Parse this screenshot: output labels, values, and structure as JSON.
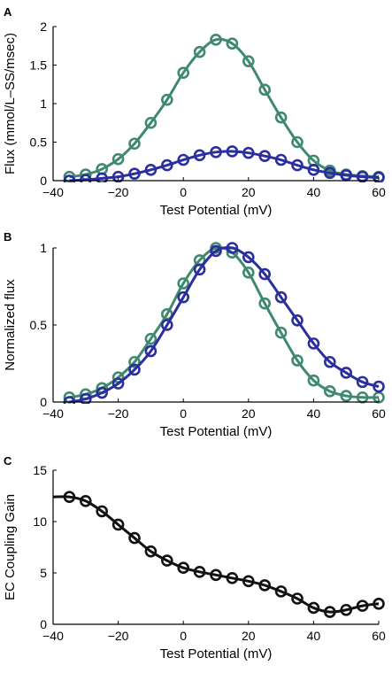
{
  "colors": {
    "green": "#3f8a6e",
    "blue": "#2b2e9f",
    "black": "#111111"
  },
  "chart_data": [
    {
      "panel_label": "A",
      "type": "line",
      "xlabel": "Test Potential (mV)",
      "ylabel": "Flux (mmol/L–SS/msec)",
      "xlim": [
        -40,
        60
      ],
      "ylim": [
        0,
        2
      ],
      "xticks": [
        -40,
        -20,
        0,
        20,
        40,
        60
      ],
      "yticks": [
        0,
        0.5,
        1,
        1.5,
        2
      ],
      "ytick_labels": [
        "0",
        "0.5",
        "1",
        "1.5",
        "2"
      ],
      "series": [
        {
          "color": "#3f8a6e",
          "x": [
            -35,
            -30,
            -25,
            -20,
            -15,
            -10,
            -5,
            0,
            5,
            10,
            15,
            20,
            25,
            30,
            35,
            40,
            45,
            50,
            55,
            60
          ],
          "y": [
            0.05,
            0.08,
            0.15,
            0.28,
            0.48,
            0.75,
            1.05,
            1.4,
            1.67,
            1.83,
            1.78,
            1.55,
            1.18,
            0.82,
            0.5,
            0.26,
            0.13,
            0.08,
            0.06,
            0.05
          ]
        },
        {
          "color": "#2b2e9f",
          "x": [
            -35,
            -30,
            -25,
            -20,
            -15,
            -10,
            -5,
            0,
            5,
            10,
            15,
            20,
            25,
            30,
            35,
            40,
            45,
            50,
            55,
            60
          ],
          "y": [
            0.0,
            0.01,
            0.03,
            0.05,
            0.09,
            0.14,
            0.2,
            0.27,
            0.33,
            0.37,
            0.38,
            0.36,
            0.32,
            0.27,
            0.2,
            0.14,
            0.1,
            0.07,
            0.05,
            0.04
          ]
        }
      ]
    },
    {
      "panel_label": "B",
      "type": "line",
      "xlabel": "Test Potential (mV)",
      "ylabel": "Normalized flux",
      "xlim": [
        -40,
        60
      ],
      "ylim": [
        0,
        1
      ],
      "xticks": [
        -40,
        -20,
        0,
        20,
        40,
        60
      ],
      "yticks": [
        0,
        0.5,
        1
      ],
      "ytick_labels": [
        "0",
        "0.5",
        "1"
      ],
      "series": [
        {
          "color": "#3f8a6e",
          "x": [
            -35,
            -30,
            -25,
            -20,
            -15,
            -10,
            -5,
            0,
            5,
            10,
            15,
            20,
            25,
            30,
            35,
            40,
            45,
            50,
            55,
            60
          ],
          "y": [
            0.03,
            0.05,
            0.09,
            0.16,
            0.26,
            0.41,
            0.57,
            0.77,
            0.92,
            1.0,
            0.97,
            0.84,
            0.64,
            0.45,
            0.27,
            0.14,
            0.07,
            0.04,
            0.03,
            0.03
          ]
        },
        {
          "color": "#2b2e9f",
          "x": [
            -35,
            -30,
            -25,
            -20,
            -15,
            -10,
            -5,
            0,
            5,
            10,
            15,
            20,
            25,
            30,
            35,
            40,
            45,
            50,
            55,
            60
          ],
          "y": [
            0.0,
            0.02,
            0.06,
            0.12,
            0.21,
            0.33,
            0.5,
            0.68,
            0.86,
            0.98,
            1.0,
            0.94,
            0.83,
            0.68,
            0.53,
            0.38,
            0.26,
            0.19,
            0.13,
            0.1
          ]
        }
      ]
    },
    {
      "panel_label": "C",
      "type": "line",
      "xlabel": "Test Potential (mV)",
      "ylabel": "EC Coupling Gain",
      "xlim": [
        -40,
        60
      ],
      "ylim": [
        0,
        15
      ],
      "xticks": [
        -40,
        -20,
        0,
        20,
        40,
        60
      ],
      "yticks": [
        0,
        5,
        10,
        15
      ],
      "ytick_labels": [
        "0",
        "5",
        "10",
        "15"
      ],
      "series": [
        {
          "color": "#111111",
          "line_start": [
            -40,
            12.4
          ],
          "x": [
            -35,
            -30,
            -25,
            -20,
            -15,
            -10,
            -5,
            0,
            5,
            10,
            15,
            20,
            25,
            30,
            35,
            40,
            45,
            50,
            55,
            60
          ],
          "y": [
            12.4,
            12.0,
            11.0,
            9.7,
            8.4,
            7.1,
            6.2,
            5.5,
            5.1,
            4.8,
            4.5,
            4.2,
            3.8,
            3.2,
            2.5,
            1.6,
            1.2,
            1.4,
            1.8,
            2.0
          ]
        }
      ]
    }
  ]
}
